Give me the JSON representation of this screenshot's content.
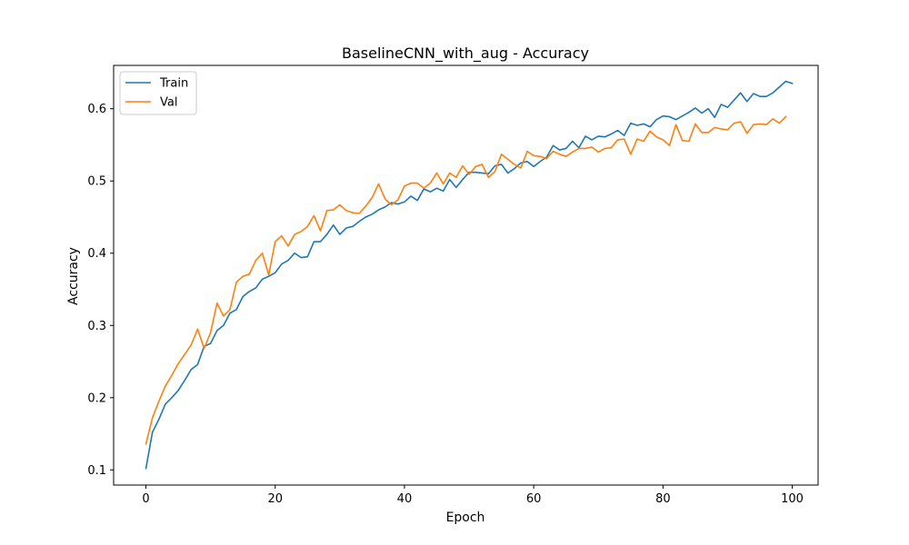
{
  "chart_data": {
    "type": "line",
    "title": "BaselineCNN_with_aug - Accuracy",
    "xlabel": "Epoch",
    "ylabel": "Accuracy",
    "xlim": [
      -5,
      104
    ],
    "ylim": [
      0.079,
      0.66
    ],
    "xticks": [
      0,
      20,
      40,
      60,
      80,
      100
    ],
    "yticks": [
      0.1,
      0.2,
      0.3,
      0.4,
      0.5,
      0.6
    ],
    "xtick_labels": [
      "0",
      "20",
      "40",
      "60",
      "80",
      "100"
    ],
    "ytick_labels": [
      "0.1",
      "0.2",
      "0.3",
      "0.4",
      "0.5",
      "0.6"
    ],
    "grid": false,
    "legend_position": "top-left",
    "series": [
      {
        "name": "Train",
        "color": "#1f77b4",
        "values": [
          0.102,
          0.152,
          0.17,
          0.191,
          0.2,
          0.21,
          0.224,
          0.239,
          0.246,
          0.271,
          0.275,
          0.293,
          0.3,
          0.317,
          0.322,
          0.34,
          0.347,
          0.352,
          0.364,
          0.368,
          0.373,
          0.385,
          0.39,
          0.4,
          0.394,
          0.395,
          0.416,
          0.416,
          0.426,
          0.439,
          0.426,
          0.435,
          0.437,
          0.444,
          0.45,
          0.454,
          0.46,
          0.464,
          0.47,
          0.468,
          0.471,
          0.479,
          0.473,
          0.489,
          0.485,
          0.49,
          0.486,
          0.502,
          0.491,
          0.502,
          0.512,
          0.512,
          0.511,
          0.51,
          0.521,
          0.523,
          0.511,
          0.517,
          0.525,
          0.527,
          0.52,
          0.527,
          0.533,
          0.549,
          0.543,
          0.545,
          0.555,
          0.546,
          0.562,
          0.557,
          0.562,
          0.561,
          0.565,
          0.57,
          0.563,
          0.58,
          0.577,
          0.579,
          0.575,
          0.585,
          0.59,
          0.589,
          0.585,
          0.59,
          0.595,
          0.601,
          0.594,
          0.6,
          0.588,
          0.606,
          0.602,
          0.612,
          0.622,
          0.61,
          0.621,
          0.617,
          0.617,
          0.622,
          0.63,
          0.638,
          0.635
        ]
      },
      {
        "name": "Val",
        "color": "#ff7f0e",
        "values": [
          0.136,
          0.172,
          0.195,
          0.216,
          0.231,
          0.247,
          0.26,
          0.273,
          0.295,
          0.268,
          0.29,
          0.331,
          0.313,
          0.322,
          0.36,
          0.368,
          0.371,
          0.39,
          0.4,
          0.37,
          0.416,
          0.424,
          0.41,
          0.426,
          0.43,
          0.437,
          0.452,
          0.431,
          0.459,
          0.46,
          0.467,
          0.459,
          0.456,
          0.455,
          0.465,
          0.477,
          0.496,
          0.475,
          0.467,
          0.474,
          0.493,
          0.497,
          0.497,
          0.49,
          0.497,
          0.511,
          0.496,
          0.511,
          0.505,
          0.521,
          0.509,
          0.52,
          0.523,
          0.505,
          0.513,
          0.537,
          0.53,
          0.523,
          0.518,
          0.541,
          0.535,
          0.534,
          0.531,
          0.541,
          0.537,
          0.534,
          0.54,
          0.545,
          0.545,
          0.547,
          0.54,
          0.545,
          0.546,
          0.557,
          0.558,
          0.537,
          0.558,
          0.555,
          0.569,
          0.561,
          0.557,
          0.549,
          0.578,
          0.556,
          0.555,
          0.579,
          0.567,
          0.567,
          0.574,
          0.572,
          0.571,
          0.58,
          0.582,
          0.566,
          0.578,
          0.579,
          0.578,
          0.586,
          0.58,
          0.589
        ]
      }
    ]
  }
}
